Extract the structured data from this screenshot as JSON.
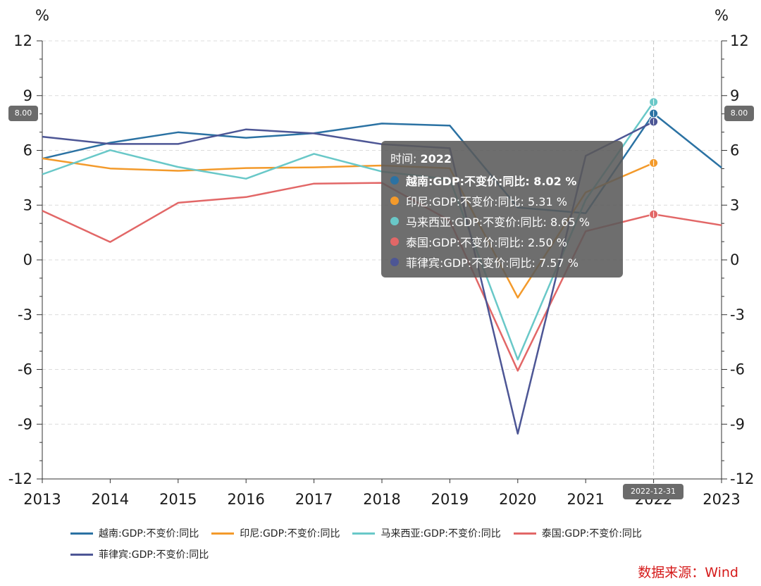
{
  "chart_data": {
    "type": "line",
    "x": [
      "2013",
      "2014",
      "2015",
      "2016",
      "2017",
      "2018",
      "2019",
      "2020",
      "2021",
      "2022",
      "2023"
    ],
    "series": [
      {
        "name": "越南:GDP:不变价:同比",
        "color": "#2b72a3",
        "values": [
          5.55,
          6.42,
          6.99,
          6.69,
          6.94,
          7.47,
          7.36,
          2.87,
          2.56,
          8.02,
          5.05
        ]
      },
      {
        "name": "印尼:GDP:不变价:同比",
        "color": "#f39a2b",
        "values": [
          5.56,
          5.01,
          4.88,
          5.03,
          5.07,
          5.17,
          5.02,
          -2.07,
          3.7,
          5.31,
          null
        ]
      },
      {
        "name": "马来西亚:GDP:不变价:同比",
        "color": "#69c8c8",
        "values": [
          4.69,
          6.01,
          5.09,
          4.45,
          5.81,
          4.84,
          4.41,
          -5.46,
          3.3,
          8.65,
          null
        ]
      },
      {
        "name": "泰国:GDP:不变价:同比",
        "color": "#e26767",
        "values": [
          2.69,
          0.98,
          3.13,
          3.44,
          4.18,
          4.22,
          2.15,
          -6.07,
          1.57,
          2.5,
          1.9
        ]
      },
      {
        "name": "菲律宾:GDP:不变价:同比",
        "color": "#4d5695",
        "values": [
          6.75,
          6.35,
          6.35,
          7.15,
          6.93,
          6.34,
          6.12,
          -9.52,
          5.7,
          7.57,
          null
        ]
      }
    ],
    "yunit_left": "%",
    "yunit_right": "%",
    "yticks": [
      "12",
      "9",
      "6",
      "3",
      "0",
      "-3",
      "-6",
      "-9",
      "-12"
    ],
    "ylim": [
      -12,
      12
    ],
    "grid": true,
    "legend_position": "bottom",
    "crosshair": {
      "x": "2022",
      "y_value_label": "8.00",
      "x_value_label": "2022-12-31"
    },
    "tooltip": {
      "time_label": "时间:",
      "time_value": "2022",
      "rows": [
        {
          "text": "越南:GDP:不变价:同比: 8.02  %",
          "color": "#2b72a3",
          "bold": true
        },
        {
          "text": "印尼:GDP:不变价:同比: 5.31  %",
          "color": "#f39a2b",
          "bold": false
        },
        {
          "text": "马来西亚:GDP:不变价:同比: 8.65  %",
          "color": "#69c8c8",
          "bold": false
        },
        {
          "text": "泰国:GDP:不变价:同比: 2.50  %",
          "color": "#e26767",
          "bold": false
        },
        {
          "text": "菲律宾:GDP:不变价:同比: 7.57  %",
          "color": "#4d5695",
          "bold": false
        }
      ]
    }
  },
  "source": "数据来源：Wind"
}
